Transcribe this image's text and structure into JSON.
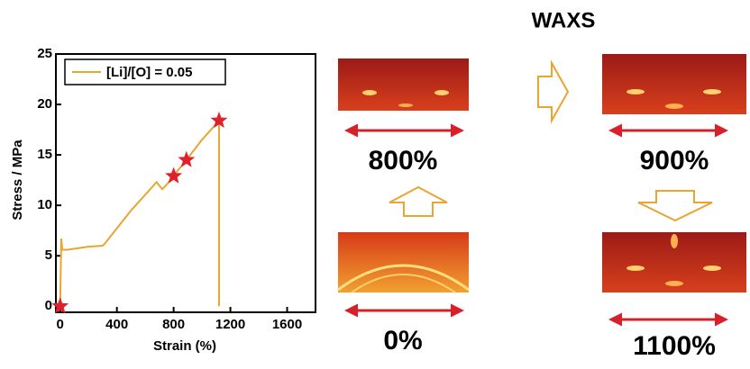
{
  "chart_data": {
    "type": "line",
    "xlabel": "Strain (%)",
    "ylabel": "Stress / MPa",
    "xlim": [
      -30,
      1800
    ],
    "ylim": [
      -0.6,
      25
    ],
    "xticks": [
      0,
      400,
      800,
      1200,
      1600
    ],
    "yticks": [
      0,
      5,
      10,
      15,
      20,
      25
    ],
    "grid": false,
    "legend": "upper left",
    "series": [
      {
        "name": "[Li]/[O] = 0.05",
        "color": "#e8a531",
        "x": [
          0,
          8,
          15,
          50,
          150,
          200,
          300,
          320,
          500,
          680,
          720,
          760,
          790,
          850,
          890,
          1000,
          1120,
          1120
        ],
        "values": [
          0,
          6.7,
          5.6,
          5.6,
          5.8,
          5.9,
          6.0,
          6.3,
          9.5,
          12.3,
          11.6,
          12.2,
          12.8,
          13.8,
          14.5,
          16.5,
          18.4,
          0
        ]
      }
    ],
    "markers": {
      "color": "#e0202a",
      "x": [
        0,
        800,
        890,
        1120
      ],
      "values": [
        0,
        12.9,
        14.5,
        18.4
      ]
    }
  },
  "waxs": {
    "title": "WAXS",
    "panels": [
      {
        "label": "800%"
      },
      {
        "label": "900%"
      },
      {
        "label": "0%"
      },
      {
        "label": "1100%"
      }
    ]
  }
}
